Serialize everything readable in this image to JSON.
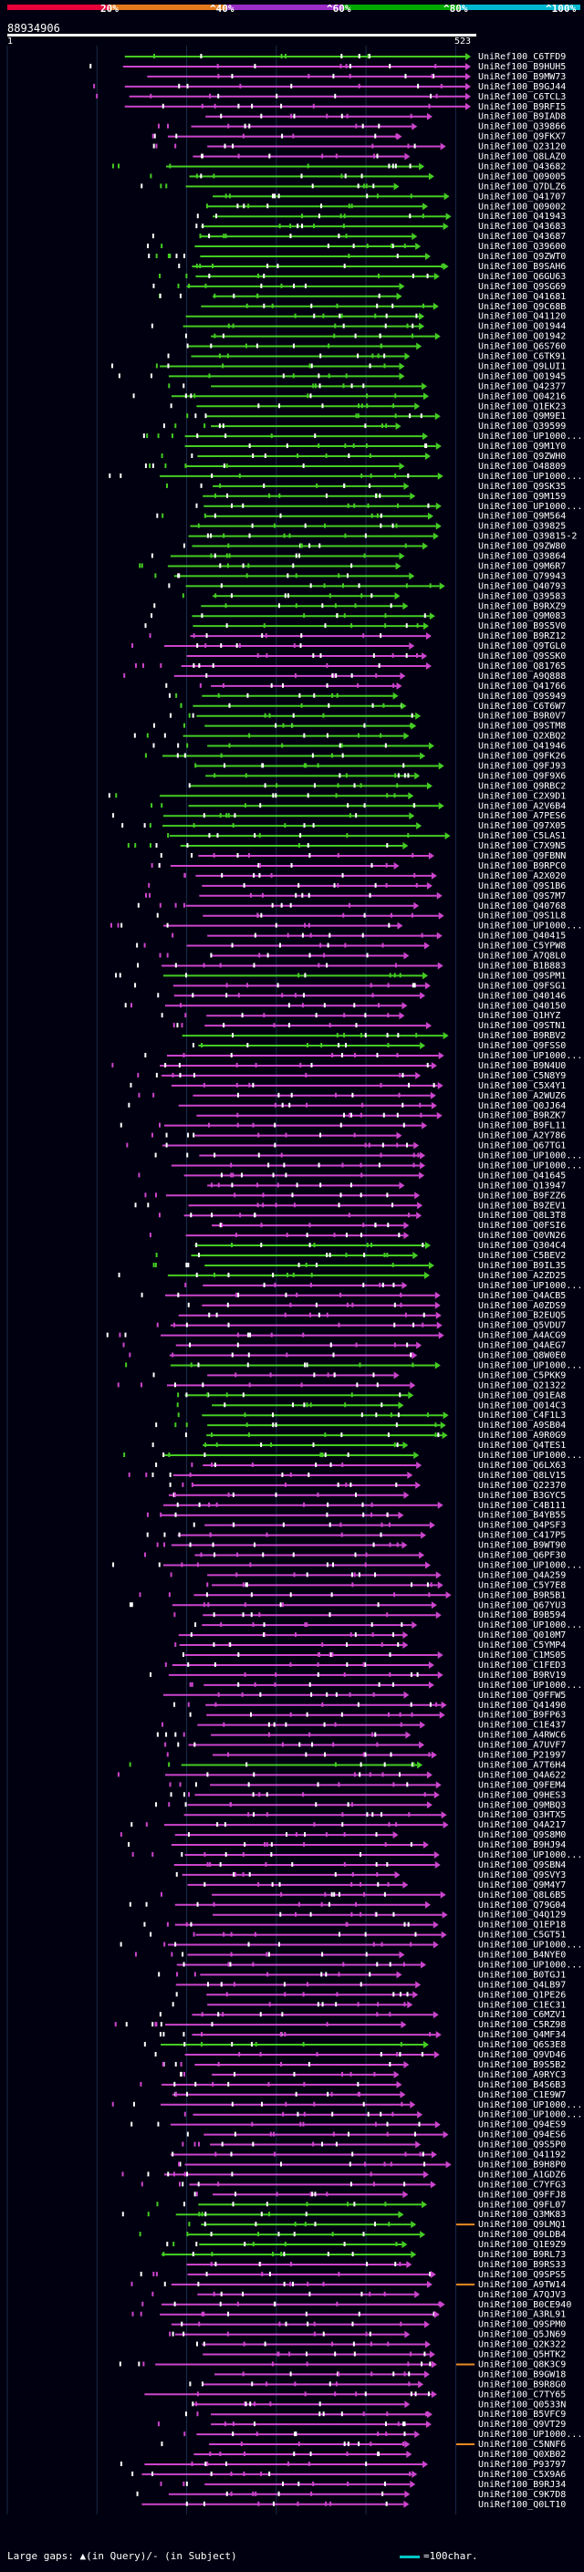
{
  "header": {
    "query_id": "88934906",
    "start": "1",
    "end": "523",
    "legend": [
      {
        "label": "20%",
        "color": "#e8003a"
      },
      {
        "label": "^40%",
        "color": "#e27a1c"
      },
      {
        "label": "^60%",
        "color": "#9b2dc8"
      },
      {
        "label": "^80%",
        "color": "#00a800"
      },
      {
        "label": "^100%",
        "color": "#00b8d0"
      }
    ]
  },
  "footer": {
    "gaps_label": "Large gaps: ▲(in Query)/- (in Subject)",
    "scale_label": "=100char."
  },
  "colors": {
    "green": "#44cc22",
    "magenta": "#cc44cc",
    "orange": "#e88a22",
    "cyan": "#00c8c8"
  },
  "chart_data": {
    "type": "alignment-map",
    "query_length": 523,
    "hits": [
      "UniRef100_C6TFD9",
      "UniRef100_B9HUH5",
      "UniRef100_B9MW73",
      "UniRef100_B9GJ44",
      "UniRef100_C6TCL3",
      "UniRef100_B9RFI5",
      "UniRef100_B9IAD8",
      "UniRef100_Q39866",
      "UniRef100_Q9FKX7",
      "UniRef100_Q23120",
      "UniRef100_Q8LAZ0",
      "UniRef100_Q43682",
      "UniRef100_Q09005",
      "UniRef100_Q7DLZ6",
      "UniRef100_Q41707",
      "UniRef100_Q09002",
      "UniRef100_Q41943",
      "UniRef100_Q43683",
      "UniRef100_Q43687",
      "UniRef100_Q39600",
      "UniRef100_Q9ZWT0",
      "UniRef100_B9SAH6",
      "UniRef100_Q6GU63",
      "UniRef100_Q9SG69",
      "UniRef100_Q41681",
      "UniRef100_Q9C68B",
      "UniRef100_Q41120",
      "UniRef100_Q01944",
      "UniRef100_Q01942",
      "UniRef100_Q6S760",
      "UniRef100_C6TK91",
      "UniRef100_Q9LUI1",
      "UniRef100_Q01945",
      "UniRef100_Q42377",
      "UniRef100_Q04216",
      "UniRef100_Q1EK23",
      "UniRef100_Q9M9E1",
      "UniRef100_Q39599",
      "UniRef100_UP1000...",
      "UniRef100_Q9M1Y0",
      "UniRef100_Q9ZWH0",
      "UniRef100_O48809",
      "UniRef100_UP1000...",
      "UniRef100_Q9SK35",
      "UniRef100_Q9M159",
      "UniRef100_UP1000...",
      "UniRef100_Q9M564",
      "UniRef100_Q39825",
      "UniRef100_Q39815-2",
      "UniRef100_Q9ZW80",
      "UniRef100_Q39864",
      "UniRef100_Q9M6R7",
      "UniRef100_Q79943",
      "UniRef100_Q40793",
      "UniRef100_Q39583",
      "UniRef100_B9RXZ9",
      "UniRef100_Q9M083",
      "UniRef100_B9S5V0",
      "UniRef100_B9RZ12",
      "UniRef100_Q9TGL0",
      "UniRef100_Q9SSK0",
      "UniRef100_Q81765",
      "UniRef100_A9Q888",
      "UniRef100_Q41766",
      "UniRef100_Q9S949",
      "UniRef100_C6T6W7",
      "UniRef100_B9R0V7",
      "UniRef100_Q9STM8",
      "UniRef100_Q2XBQ2",
      "UniRef100_Q41946",
      "UniRef100_Q9FK26",
      "UniRef100_Q9FJ93",
      "UniRef100_Q9F9X6",
      "UniRef100_Q9RBC2",
      "UniRef100_C2X9D1",
      "UniRef100_A2V6B4",
      "UniRef100_A7PES6",
      "UniRef100_Q97X05",
      "UniRef100_C5LAS1",
      "UniRef100_C7X9N5",
      "UniRef100_Q9FBNN",
      "UniRef100_B9RPC0",
      "UniRef100_A2X020",
      "UniRef100_Q9S1B6",
      "UniRef100_Q9S7M7",
      "UniRef100_Q40768",
      "UniRef100_Q9S1L8",
      "UniRef100_UP1000...",
      "UniRef100_Q40415",
      "UniRef100_C5YPW8",
      "UniRef100_A7Q8L0",
      "UniRef100_B1B883",
      "UniRef100_Q9SPM1",
      "UniRef100_Q9FSG1",
      "UniRef100_Q40146",
      "UniRef100_Q40150",
      "UniRef100_Q1HYZ",
      "UniRef100_Q9STN1",
      "UniRef100_B9RBV2",
      "UniRef100_Q9FSS0",
      "UniRef100_UP1000...",
      "UniRef100_B9N4U0",
      "UniRef100_C5N8Y9",
      "UniRef100_C5X4Y1",
      "UniRef100_A2WUZ6",
      "UniRef100_Q0JJ64",
      "UniRef100_B9RZK7",
      "UniRef100_B9FL11",
      "UniRef100_A2Y786",
      "UniRef100_Q67TG1",
      "UniRef100_UP1000...",
      "UniRef100_UP1000...",
      "UniRef100_Q41645",
      "UniRef100_Q13947",
      "UniRef100_B9FZZ6",
      "UniRef100_B9ZEV1",
      "UniRef100_Q8L3T8",
      "UniRef100_Q0FSI6",
      "UniRef100_Q0VN26",
      "UniRef100_Q304C4",
      "UniRef100_C5BEV2",
      "UniRef100_B9IL35",
      "UniRef100_A2ZD25",
      "UniRef100_UP1000...",
      "UniRef100_Q4ACB5",
      "UniRef100_A0ZDS9",
      "UniRef100_B2EUQ5",
      "UniRef100_Q5VDU7",
      "UniRef100_A4ACG9",
      "UniRef100_Q4AEG7",
      "UniRef100_Q8W0E0",
      "UniRef100_UP1000...",
      "UniRef100_C5PKK9",
      "UniRef100_Q21322",
      "UniRef100_Q91EA8",
      "UniRef100_Q014C3",
      "UniRef100_C4F1L3",
      "UniRef100_A9SB04",
      "UniRef100_A9R0G9",
      "UniRef100_Q4TES1",
      "UniRef100_UP1000...",
      "UniRef100_Q6LX63",
      "UniRef100_Q8LV15",
      "UniRef100_Q22370",
      "UniRef100_B3GYC5",
      "UniRef100_C4B111",
      "UniRef100_B4YB55",
      "UniRef100_Q4PSF3",
      "UniRef100_C417P5",
      "UniRef100_B9WT90",
      "UniRef100_Q6PF30",
      "UniRef100_UP1000...",
      "UniRef100_Q4A259",
      "UniRef100_C5Y7E8",
      "UniRef100_B9R5B1",
      "UniRef100_Q67YU3",
      "UniRef100_B9B594",
      "UniRef100_UP1000...",
      "UniRef100_Q010M7",
      "UniRef100_C5YMP4",
      "UniRef100_C1MS05",
      "UniRef100_C1FED3",
      "UniRef100_B9RV19",
      "UniRef100_UP1000...",
      "UniRef100_Q9FFW5",
      "UniRef100_Q41490",
      "UniRef100_B9FP63",
      "UniRef100_C1E437",
      "UniRef100_A4RWC6",
      "UniRef100_A7UVF7",
      "UniRef100_P21997",
      "UniRef100_A7T6H4",
      "UniRef100_Q4A622",
      "UniRef100_Q9FEM4",
      "UniRef100_Q9HES3",
      "UniRef100_Q9MBQ3",
      "UniRef100_Q3HTX5",
      "UniRef100_Q4A217",
      "UniRef100_Q9S8M0",
      "UniRef100_B9HJ94",
      "UniRef100_UP1000...",
      "UniRef100_Q9SBN4",
      "UniRef100_Q9SVY3",
      "UniRef100_Q9M4Y7",
      "UniRef100_Q8L6B5",
      "UniRef100_Q79G04",
      "UniRef100_Q4Q129",
      "UniRef100_Q1EP18",
      "UniRef100_C5GT51",
      "UniRef100_UP1000...",
      "UniRef100_B4NYE0",
      "UniRef100_UP1000...",
      "UniRef100_B0TGJ1",
      "UniRef100_Q4LB97",
      "UniRef100_Q1PE26",
      "UniRef100_C1EC31",
      "UniRef100_C6MZV1",
      "UniRef100_C5RZ98",
      "UniRef100_Q4MF34",
      "UniRef100_Q6S3E8",
      "UniRef100_Q9VD46",
      "UniRef100_B9S5B2",
      "UniRef100_A9RYC3",
      "UniRef100_B4S6B3",
      "UniRef100_C1E9W7",
      "UniRef100_UP1000...",
      "UniRef100_UP1000...",
      "UniRef100_Q94ES9",
      "UniRef100_Q94ES6",
      "UniRef100_Q9S5P0",
      "UniRef100_Q41192",
      "UniRef100_B9H8P0",
      "UniRef100_A1GDZ6",
      "UniRef100_C7YFG3",
      "UniRef100_Q9FFJ8",
      "UniRef100_Q9FL07",
      "UniRef100_Q3MK83",
      "UniRef100_Q9LMQ1",
      "UniRef100_Q9LDB4",
      "UniRef100_Q1E9Z9",
      "UniRef100_B9RL73",
      "UniRef100_B9RS33",
      "UniRef100_Q9SPS5",
      "UniRef100_A9TW14",
      "UniRef100_A7QJV3",
      "UniRef100_B0CE940",
      "UniRef100_A3RL91",
      "UniRef100_Q9SPM0",
      "UniRef100_Q5JN69",
      "UniRef100_Q2K322",
      "UniRef100_Q5HTK2",
      "UniRef100_Q8K3C9",
      "UniRef100_B9GW18",
      "UniRef100_B9R8G0",
      "UniRef100_C7TY65",
      "UniRef100_Q0533N",
      "UniRef100_B5VFC9",
      "UniRef100_Q9VT29",
      "UniRef100_UP1000...",
      "UniRef100_C5NNF6",
      "UniRef100_Q0XB02",
      "UniRef100_P93797",
      "UniRef100_C5X9A6",
      "UniRef100_B9RJ34",
      "UniRef100_C9K7D8",
      "UniRef100_Q0LT10"
    ],
    "green_rows": [
      0,
      11,
      12,
      13,
      14,
      15,
      16,
      17,
      18,
      19,
      20,
      21,
      22,
      23,
      24,
      25,
      26,
      27,
      28,
      29,
      30,
      31,
      32,
      33,
      34,
      35,
      36,
      37,
      38,
      39,
      40,
      41,
      42,
      43,
      44,
      45,
      46,
      47,
      48,
      49,
      50,
      51,
      52,
      53,
      54,
      55,
      56,
      57,
      64,
      65,
      66,
      67,
      68,
      69,
      70,
      71,
      72,
      73,
      74,
      75,
      76,
      77,
      78,
      79,
      92,
      98,
      99,
      119,
      120,
      121,
      122,
      131,
      134,
      135,
      136,
      137,
      138,
      139,
      140,
      171,
      199,
      215,
      216,
      217,
      218,
      219,
      220
    ],
    "orange_rows": [
      217,
      223,
      231,
      239
    ]
  }
}
